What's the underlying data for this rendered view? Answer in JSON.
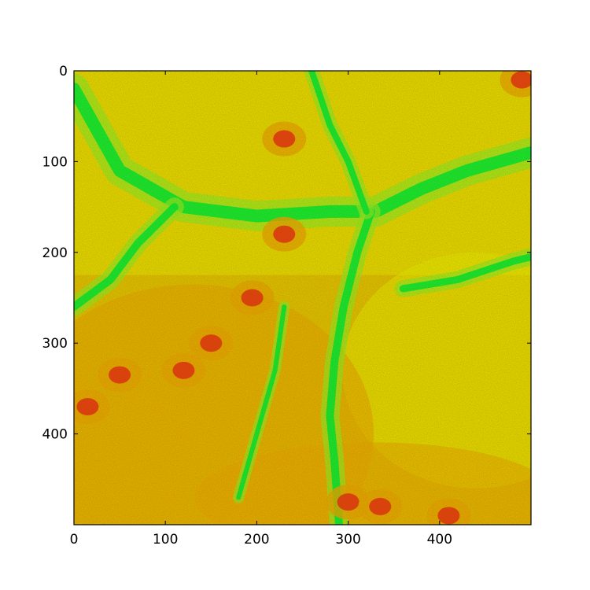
{
  "chart_data": {
    "type": "heatmap",
    "title": "",
    "xlabel": "",
    "ylabel": "",
    "xlim": [
      0,
      500
    ],
    "ylim": [
      500,
      0
    ],
    "xticks": [
      0,
      100,
      200,
      300,
      400
    ],
    "yticks": [
      0,
      100,
      200,
      300,
      400
    ],
    "grid": false,
    "colormap": [
      "#00e030",
      "#90e020",
      "#e0e000",
      "#e0a000",
      "#e03010"
    ],
    "features": {
      "main_channel": [
        [
          0,
          20
        ],
        [
          50,
          110
        ],
        [
          120,
          150
        ],
        [
          200,
          160
        ],
        [
          280,
          155
        ],
        [
          330,
          155
        ],
        [
          380,
          130
        ],
        [
          430,
          110
        ],
        [
          500,
          90
        ]
      ],
      "tributary_south": [
        [
          325,
          155
        ],
        [
          310,
          200
        ],
        [
          295,
          260
        ],
        [
          285,
          320
        ],
        [
          280,
          380
        ],
        [
          285,
          430
        ],
        [
          290,
          500
        ]
      ],
      "tributary_west": [
        [
          110,
          150
        ],
        [
          70,
          190
        ],
        [
          40,
          230
        ],
        [
          0,
          260
        ]
      ],
      "tributary_north": [
        [
          320,
          155
        ],
        [
          300,
          100
        ],
        [
          280,
          60
        ],
        [
          260,
          0
        ]
      ],
      "side_valley_east": [
        [
          360,
          240
        ],
        [
          420,
          230
        ],
        [
          480,
          210
        ],
        [
          500,
          205
        ]
      ],
      "minor_channel": [
        [
          230,
          260
        ],
        [
          220,
          330
        ],
        [
          200,
          400
        ],
        [
          180,
          470
        ]
      ],
      "high_points": [
        [
          230,
          75
        ],
        [
          230,
          180
        ],
        [
          195,
          250
        ],
        [
          150,
          300
        ],
        [
          50,
          335
        ],
        [
          120,
          330
        ],
        [
          300,
          475
        ],
        [
          335,
          480
        ],
        [
          410,
          490
        ],
        [
          490,
          10
        ],
        [
          15,
          370
        ]
      ]
    }
  }
}
